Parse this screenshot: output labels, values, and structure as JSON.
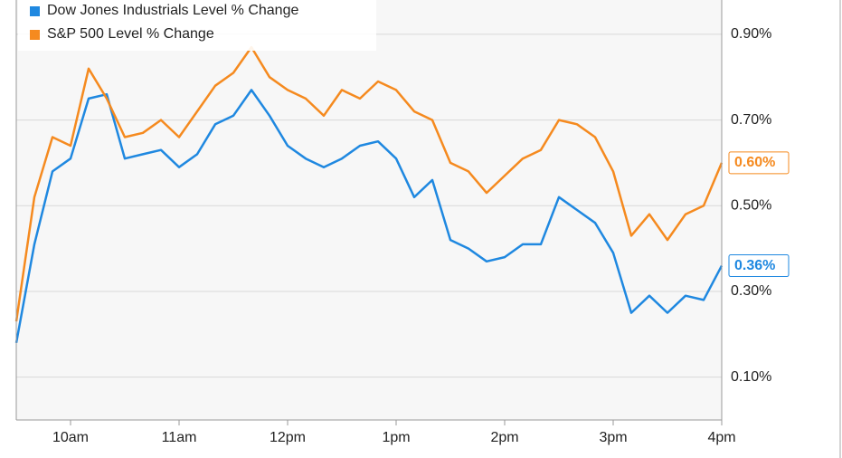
{
  "chart_data": {
    "type": "line",
    "x": [
      570,
      580,
      590,
      600,
      610,
      620,
      630,
      640,
      650,
      660,
      670,
      680,
      690,
      700,
      710,
      720,
      730,
      740,
      750,
      760,
      770,
      780,
      790,
      800,
      810,
      820,
      830,
      840,
      850,
      860,
      870,
      880,
      890,
      900,
      910,
      920,
      930,
      940,
      950,
      960
    ],
    "xlim": [
      570,
      960
    ],
    "xticks": [
      {
        "value": 600,
        "label": "10am"
      },
      {
        "value": 660,
        "label": "11am"
      },
      {
        "value": 720,
        "label": "12pm"
      },
      {
        "value": 780,
        "label": "1pm"
      },
      {
        "value": 840,
        "label": "2pm"
      },
      {
        "value": 900,
        "label": "3pm"
      },
      {
        "value": 960,
        "label": "4pm"
      }
    ],
    "ylim": [
      0,
      0.98
    ],
    "yticks": [
      {
        "value": 0.1,
        "label": "0.10%"
      },
      {
        "value": 0.3,
        "label": "0.30%"
      },
      {
        "value": 0.5,
        "label": "0.50%"
      },
      {
        "value": 0.7,
        "label": "0.70%"
      },
      {
        "value": 0.9,
        "label": "0.90%"
      }
    ],
    "grid": true,
    "legend": "top-left",
    "series": [
      {
        "name": "Dow Jones Industrials Level % Change",
        "color": "#1f88e0",
        "values": [
          0.18,
          0.41,
          0.58,
          0.61,
          0.75,
          0.76,
          0.61,
          0.62,
          0.63,
          0.59,
          0.62,
          0.69,
          0.71,
          0.77,
          0.71,
          0.64,
          0.61,
          0.59,
          0.61,
          0.64,
          0.65,
          0.61,
          0.52,
          0.56,
          0.42,
          0.4,
          0.37,
          0.38,
          0.41,
          0.41,
          0.52,
          0.49,
          0.46,
          0.39,
          0.25,
          0.29,
          0.25,
          0.29,
          0.28,
          0.36
        ],
        "value_labels": [
          null,
          null,
          null,
          null,
          null,
          null,
          null,
          null,
          null,
          null,
          null,
          null,
          null,
          null,
          null,
          null,
          null,
          null,
          null,
          null,
          null,
          null,
          null,
          null,
          null,
          null,
          null,
          null,
          null,
          null,
          null,
          null,
          null,
          null,
          null,
          null,
          null,
          null,
          null,
          "0.36%"
        ]
      },
      {
        "name": "S&P 500 Level % Change",
        "color": "#f58a1f",
        "values": [
          0.23,
          0.52,
          0.66,
          0.64,
          0.82,
          0.75,
          0.66,
          0.67,
          0.7,
          0.66,
          0.72,
          0.78,
          0.81,
          0.87,
          0.8,
          0.77,
          0.75,
          0.71,
          0.77,
          0.75,
          0.79,
          0.77,
          0.72,
          0.7,
          0.6,
          0.58,
          0.53,
          0.57,
          0.61,
          0.63,
          0.7,
          0.69,
          0.66,
          0.58,
          0.43,
          0.48,
          0.42,
          0.48,
          0.5,
          0.6
        ],
        "value_labels": [
          null,
          null,
          null,
          null,
          null,
          null,
          null,
          null,
          null,
          null,
          null,
          null,
          null,
          null,
          null,
          null,
          null,
          null,
          null,
          null,
          null,
          null,
          null,
          null,
          null,
          null,
          null,
          null,
          null,
          null,
          null,
          null,
          null,
          null,
          null,
          null,
          null,
          null,
          null,
          "0.60%"
        ]
      }
    ]
  }
}
